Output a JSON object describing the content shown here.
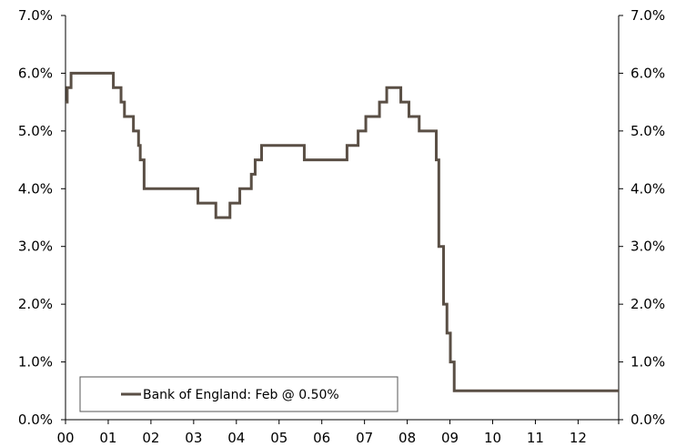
{
  "chart_data": {
    "type": "line",
    "title": "",
    "xlabel": "",
    "ylabel": "",
    "x_tick_labels": [
      "00",
      "01",
      "02",
      "03",
      "04",
      "05",
      "06",
      "07",
      "08",
      "09",
      "10",
      "11",
      "12"
    ],
    "y_tick_labels": [
      "0.0%",
      "1.0%",
      "2.0%",
      "3.0%",
      "4.0%",
      "5.0%",
      "6.0%",
      "7.0%"
    ],
    "xlim": [
      2000.0,
      2012.95
    ],
    "ylim": [
      0,
      7
    ],
    "y_unit": "%",
    "right_axis_mirrors_left": true,
    "grid": false,
    "legend_position": "bottom-left",
    "series": [
      {
        "name": "Bank of England: Feb @ 0.50%",
        "color": "#5a4f45",
        "step": true,
        "points": [
          [
            2000.0,
            5.5
          ],
          [
            2000.04,
            5.75
          ],
          [
            2000.13,
            6.0
          ],
          [
            2001.08,
            6.0
          ],
          [
            2001.12,
            5.75
          ],
          [
            2001.3,
            5.5
          ],
          [
            2001.38,
            5.25
          ],
          [
            2001.59,
            5.0
          ],
          [
            2001.71,
            4.75
          ],
          [
            2001.75,
            4.5
          ],
          [
            2001.84,
            4.0
          ],
          [
            2003.08,
            4.0
          ],
          [
            2003.1,
            3.75
          ],
          [
            2003.52,
            3.5
          ],
          [
            2003.85,
            3.75
          ],
          [
            2004.08,
            4.0
          ],
          [
            2004.35,
            4.25
          ],
          [
            2004.44,
            4.5
          ],
          [
            2004.59,
            4.75
          ],
          [
            2005.58,
            4.75
          ],
          [
            2005.59,
            4.5
          ],
          [
            2006.58,
            4.5
          ],
          [
            2006.59,
            4.75
          ],
          [
            2006.85,
            5.0
          ],
          [
            2007.03,
            5.25
          ],
          [
            2007.35,
            5.5
          ],
          [
            2007.52,
            5.75
          ],
          [
            2007.85,
            5.5
          ],
          [
            2008.04,
            5.25
          ],
          [
            2008.28,
            5.0
          ],
          [
            2008.6,
            5.0
          ],
          [
            2008.68,
            4.5
          ],
          [
            2008.74,
            3.0
          ],
          [
            2008.85,
            2.0
          ],
          [
            2008.93,
            1.5
          ],
          [
            2009.01,
            1.0
          ],
          [
            2009.1,
            0.5
          ],
          [
            2012.95,
            0.5
          ]
        ]
      }
    ]
  }
}
